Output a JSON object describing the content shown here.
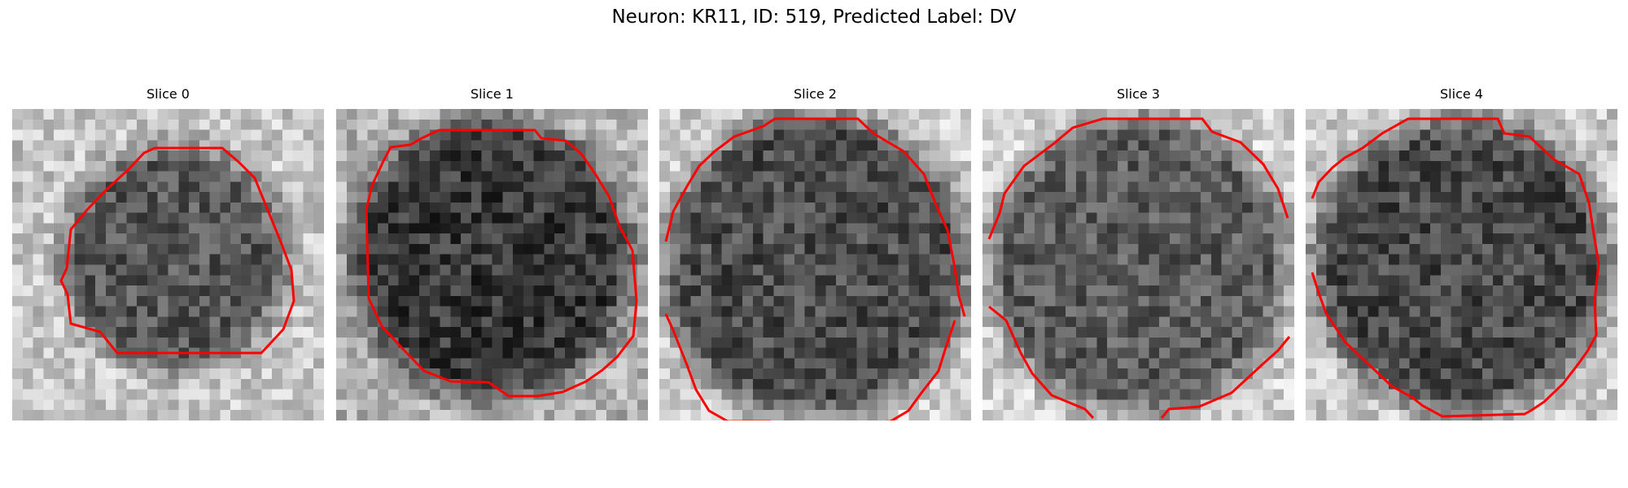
{
  "figure": {
    "title": "Neuron: KR11, ID: 519, Predicted Label: DV"
  },
  "panels": [
    {
      "title": "Slice 0",
      "colors": {
        "contour": "#ff0000"
      }
    },
    {
      "title": "Slice 1",
      "colors": {
        "contour": "#ff0000"
      }
    },
    {
      "title": "Slice 2",
      "colors": {
        "contour": "#ff0000"
      }
    },
    {
      "title": "Slice 3",
      "colors": {
        "contour": "#ff0000"
      }
    },
    {
      "title": "Slice 4",
      "colors": {
        "contour": "#ff0000"
      }
    }
  ]
}
